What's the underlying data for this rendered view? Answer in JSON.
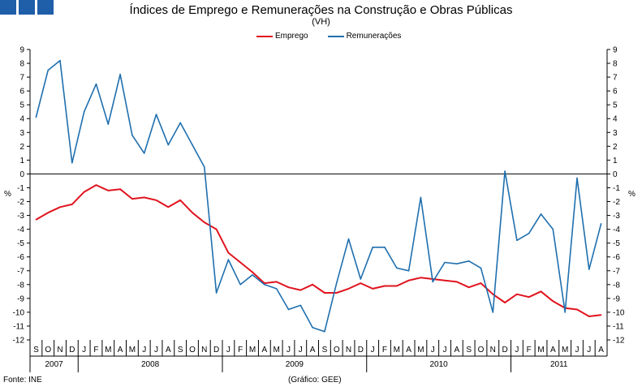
{
  "header": {
    "logo_name": "ine-logo"
  },
  "colors": {
    "emprego": "#e0141e",
    "remuneracoes": "#1f6fae",
    "axis": "#000000",
    "logo": "#1f5ea8"
  },
  "unit_left": "%",
  "unit_right": "%",
  "footer": {
    "source": "Fonte: INE",
    "credit": "(Gráfico: GEE)"
  },
  "chart_data": {
    "type": "line",
    "title": "Índices de Emprego e Remunerações na Construção e Obras Públicas",
    "subtitle": "(VH)",
    "ylim": [
      -12,
      9
    ],
    "yticks": [
      9,
      8,
      7,
      6,
      5,
      4,
      3,
      2,
      1,
      0,
      -1,
      -2,
      -3,
      -4,
      -5,
      -6,
      -7,
      -8,
      -9,
      -10,
      -11,
      -12
    ],
    "ylabel": "%",
    "month_labels": [
      "S",
      "O",
      "N",
      "D",
      "J",
      "F",
      "M",
      "A",
      "M",
      "J",
      "J",
      "A",
      "S",
      "O",
      "N",
      "D",
      "J",
      "F",
      "M",
      "A",
      "M",
      "J",
      "J",
      "A",
      "S",
      "O",
      "N",
      "D",
      "J",
      "F",
      "M",
      "A",
      "M",
      "J",
      "J",
      "A",
      "S",
      "O",
      "N",
      "D",
      "J",
      "F",
      "M",
      "A",
      "M",
      "J",
      "J",
      "A"
    ],
    "years": [
      {
        "label": "2007",
        "start": 0,
        "end": 4
      },
      {
        "label": "2008",
        "start": 4,
        "end": 16
      },
      {
        "label": "2009",
        "start": 16,
        "end": 28
      },
      {
        "label": "2010",
        "start": 28,
        "end": 40
      },
      {
        "label": "2011",
        "start": 40,
        "end": 48
      }
    ],
    "series": [
      {
        "name": "Emprego",
        "values": [
          -3.3,
          -2.8,
          -2.4,
          -2.2,
          -1.3,
          -0.8,
          -1.2,
          -1.1,
          -1.8,
          -1.7,
          -1.9,
          -2.4,
          -1.9,
          -2.8,
          -3.5,
          -4.0,
          -5.7,
          -6.4,
          -7.1,
          -7.9,
          -7.8,
          -8.2,
          -8.4,
          -8.0,
          -8.6,
          -8.6,
          -8.3,
          -7.9,
          -8.3,
          -8.1,
          -8.1,
          -7.7,
          -7.5,
          -7.6,
          -7.7,
          -7.8,
          -8.2,
          -7.9,
          -8.7,
          -9.3,
          -8.7,
          -8.9,
          -8.5,
          -9.2,
          -9.7,
          -9.8,
          -10.3,
          -10.2
        ]
      },
      {
        "name": "Remunerações",
        "values": [
          4.1,
          7.5,
          8.2,
          0.8,
          4.5,
          6.5,
          3.6,
          7.2,
          2.8,
          1.5,
          4.3,
          2.1,
          3.7,
          2.1,
          0.5,
          -8.6,
          -6.2,
          -8.0,
          -7.3,
          -8.0,
          -8.3,
          -9.8,
          -9.5,
          -11.1,
          -11.4,
          -7.9,
          -4.7,
          -7.6,
          -5.3,
          -5.3,
          -6.8,
          -7.0,
          -1.7,
          -7.8,
          -6.4,
          -6.5,
          -6.3,
          -6.8,
          -10.0,
          0.2,
          -4.8,
          -4.3,
          -2.9,
          -4.0,
          -10.0,
          -0.3,
          -6.9,
          -3.6
        ]
      }
    ]
  }
}
